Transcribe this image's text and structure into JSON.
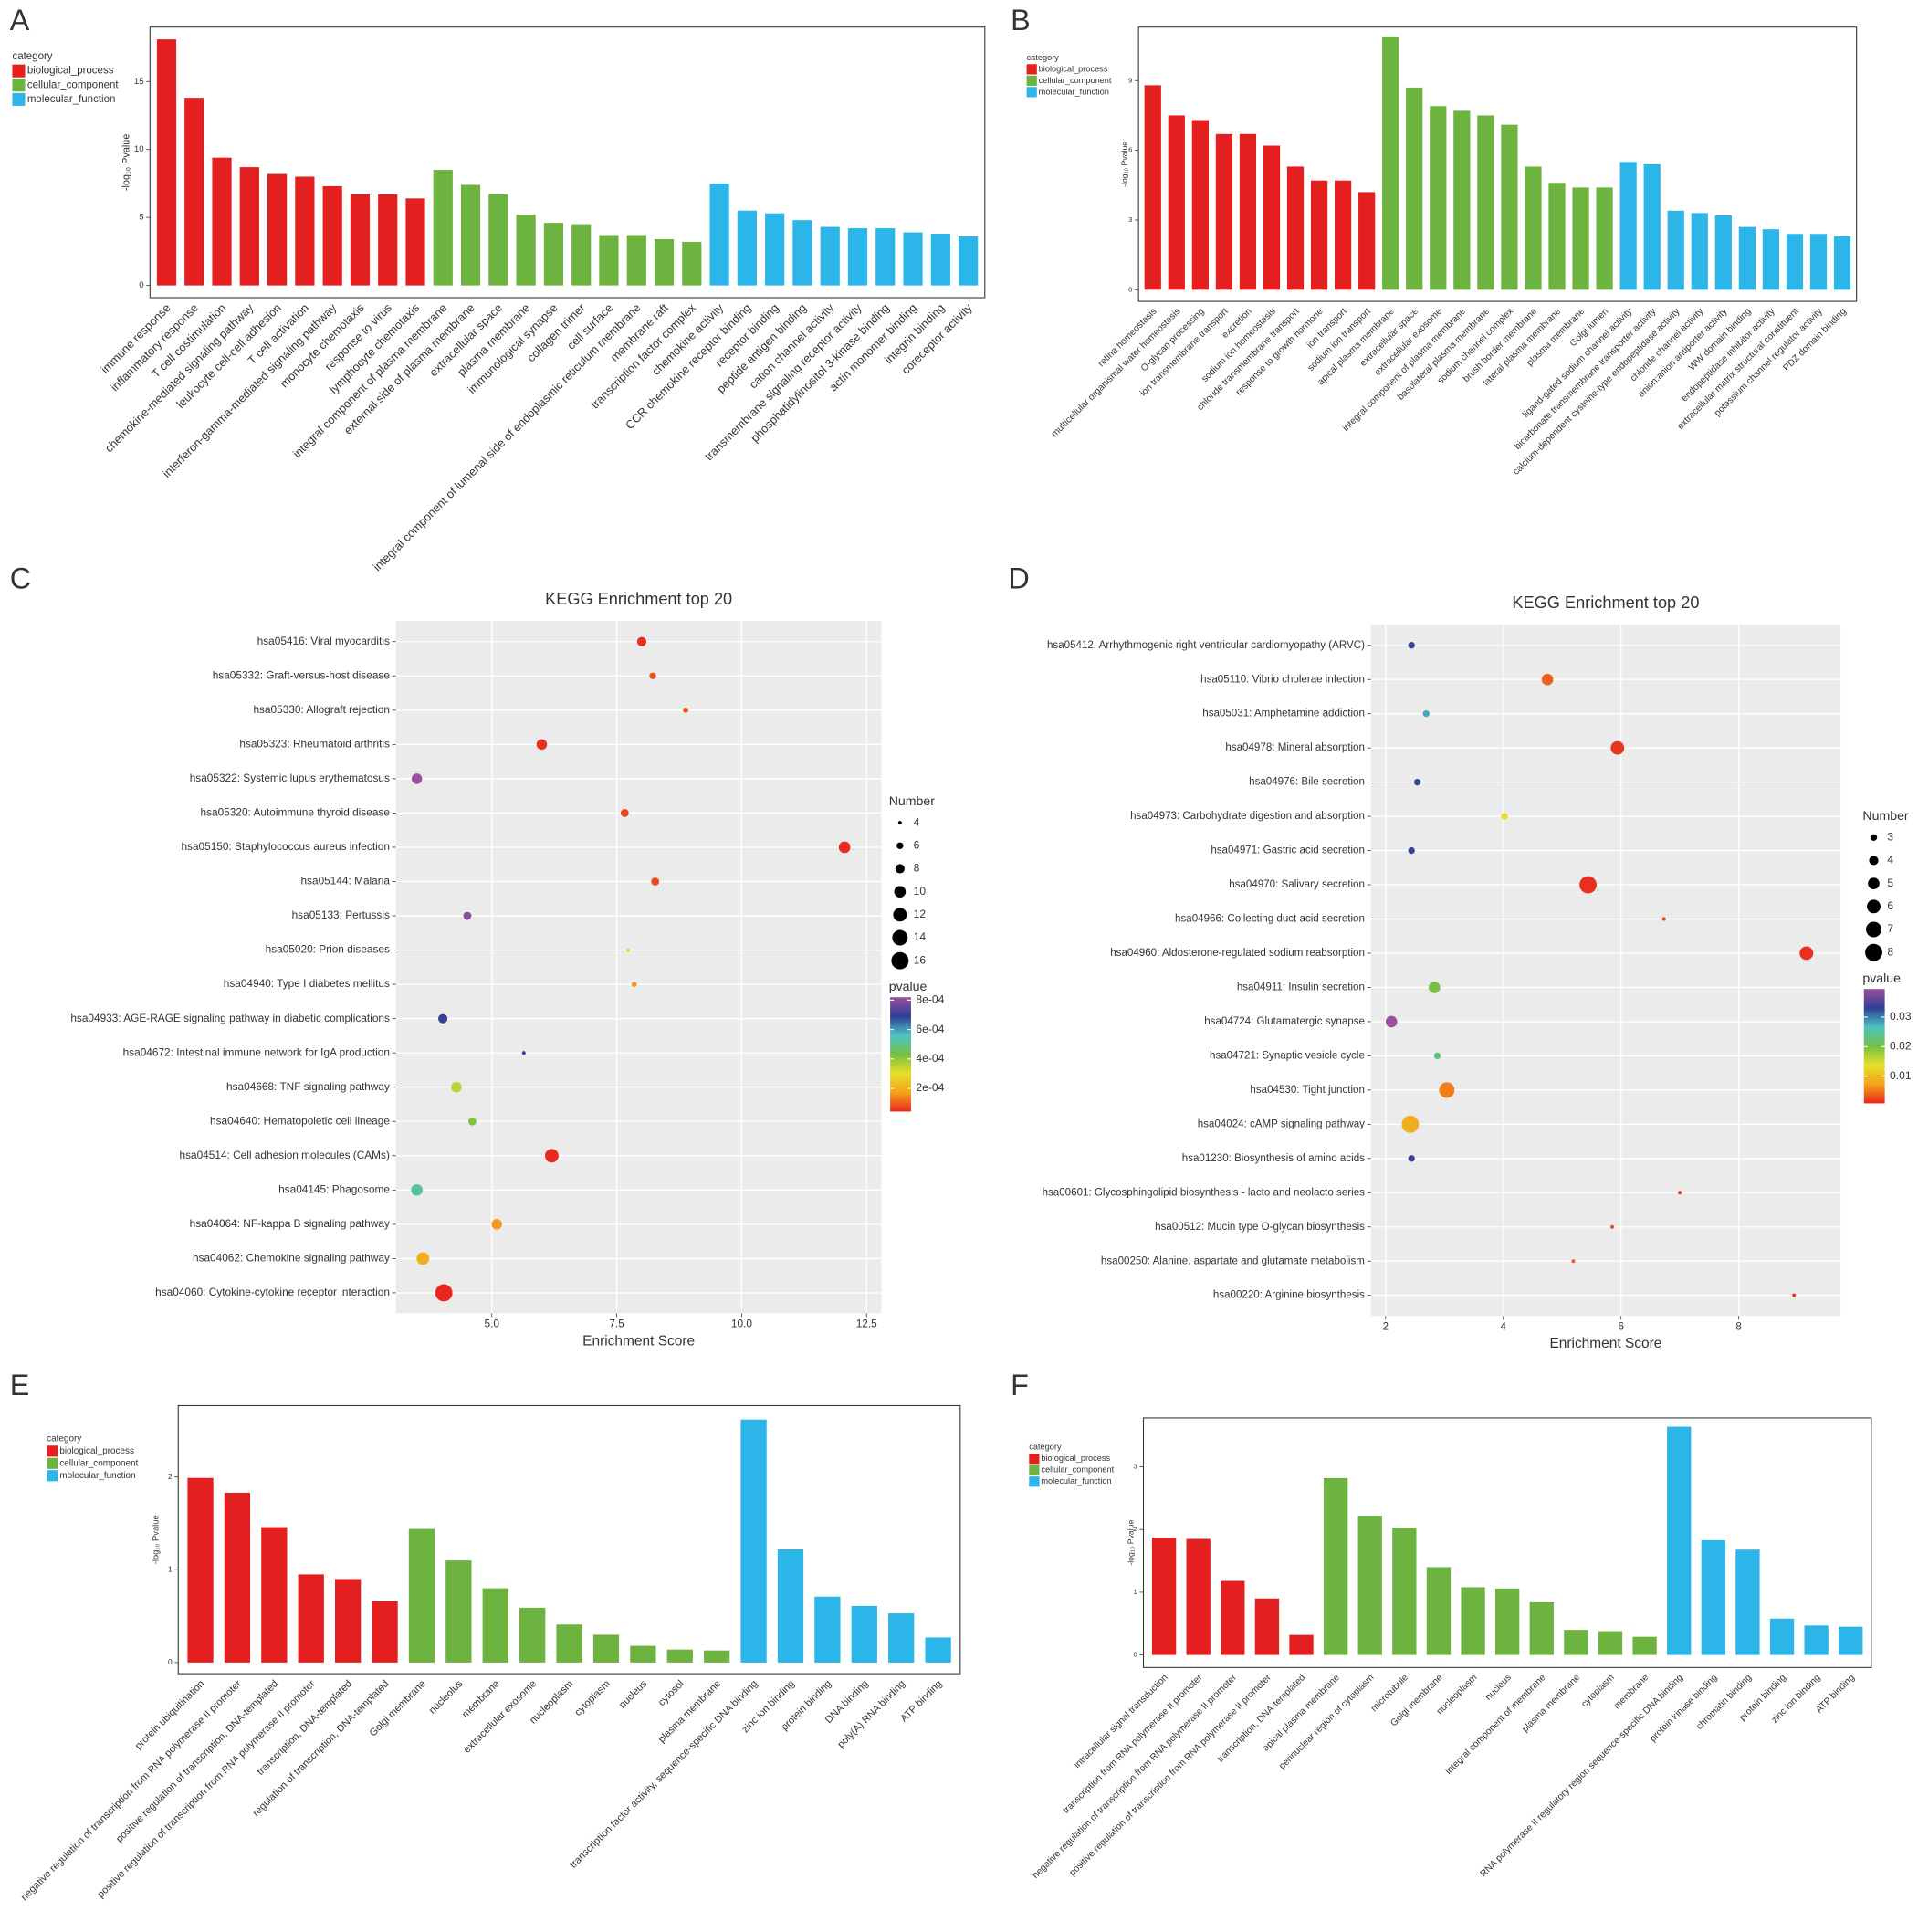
{
  "chart_data": [
    {
      "type": "bar",
      "label": "A",
      "ylabel": "-log₁₀ Pvalue",
      "legend_title": "category",
      "ylim": [
        -0.9,
        19
      ],
      "yticks": [
        0,
        5,
        10,
        15
      ],
      "series": [
        {
          "name": "biological_process",
          "color": "#e41f1f",
          "categories": [
            "immune response",
            "inflammatory response",
            "T cell costimulation",
            "chemokine-mediated signaling pathway",
            "leukocyte cell-cell adhesion",
            "T cell activation",
            "interferon-gamma-mediated signaling pathway",
            "monocyte chemotaxis",
            "response to virus",
            "lymphocyte chemotaxis"
          ],
          "values": [
            18.1,
            13.8,
            9.4,
            8.7,
            8.2,
            8.0,
            7.3,
            6.7,
            6.7,
            6.4
          ]
        },
        {
          "name": "cellular_component",
          "color": "#6db33f",
          "categories": [
            "integral component of plasma membrane",
            "external side of plasma membrane",
            "extracellular space",
            "plasma membrane",
            "immunological synapse",
            "collagen trimer",
            "cell surface",
            "integral component of lumenal side of endoplasmic reticulum membrane",
            "membrane raft",
            "transcription factor complex"
          ],
          "values": [
            8.5,
            7.4,
            6.7,
            5.2,
            4.6,
            4.5,
            3.7,
            3.7,
            3.4,
            3.2
          ]
        },
        {
          "name": "molecular_function",
          "color": "#2bb5e8",
          "categories": [
            "chemokine activity",
            "CCR chemokine receptor binding",
            "receptor binding",
            "peptide antigen binding",
            "cation channel activity",
            "transmembrane signaling receptor activity",
            "phosphatidylinositol 3-kinase binding",
            "actin monomer binding",
            "integrin binding",
            "coreceptor activity"
          ],
          "values": [
            7.5,
            5.5,
            5.3,
            4.8,
            4.3,
            4.2,
            4.2,
            3.9,
            3.8,
            3.6
          ]
        }
      ]
    },
    {
      "type": "bar",
      "label": "B",
      "ylabel": "-log₁₀ Pvalue",
      "legend_title": "category",
      "ylim": [
        -0.5,
        11.3
      ],
      "yticks": [
        0,
        3,
        6,
        9
      ],
      "series": [
        {
          "name": "biological_process",
          "color": "#e41f1f",
          "categories": [
            "retina homeostasis",
            "multicellular organismal water homeostasis",
            "O-glycan processing",
            "ion transmembrane transport",
            "excretion",
            "sodium ion homeostasis",
            "chloride transmembrane transport",
            "response to growth hormone",
            "ion transport",
            "sodium ion transport"
          ],
          "values": [
            8.8,
            7.5,
            7.3,
            6.7,
            6.7,
            6.2,
            5.3,
            4.7,
            4.7,
            4.2
          ]
        },
        {
          "name": "cellular_component",
          "color": "#6db33f",
          "categories": [
            "apical plasma membrane",
            "extracellular space",
            "extracellular exosome",
            "integral component of plasma membrane",
            "basolateral plasma membrane",
            "sodium channel complex",
            "brush border membrane",
            "lateral plasma membrane",
            "plasma membrane",
            "Golgi lumen"
          ],
          "values": [
            10.9,
            8.7,
            7.9,
            7.7,
            7.5,
            7.1,
            5.3,
            4.6,
            4.4,
            4.4
          ]
        },
        {
          "name": "molecular_function",
          "color": "#2bb5e8",
          "categories": [
            "ligand-gated sodium channel activity",
            "bicarbonate transmembrane transporter activity",
            "calcium-dependent cysteine-type endopeptidase activity",
            "chloride channel activity",
            "anion:anion antiporter activity",
            "WW domain binding",
            "endopeptidase inhibitor activity",
            "extracellular matrix structural constituent",
            "potassium channel regulator activity",
            "PDZ domain binding"
          ],
          "values": [
            5.5,
            5.4,
            3.4,
            3.3,
            3.2,
            2.7,
            2.6,
            2.4,
            2.4,
            2.3
          ]
        }
      ]
    },
    {
      "type": "dot",
      "label": "C",
      "title": "KEGG Enrichment top 20",
      "xlabel": "Enrichment Score",
      "size_title": "Number",
      "color_title": "pvalue",
      "categories": [
        "hsa05416: Viral myocarditis",
        "hsa05332: Graft-versus-host disease",
        "hsa05330: Allograft rejection",
        "hsa05323: Rheumatoid arthritis",
        "hsa05322: Systemic lupus erythematosus",
        "hsa05320: Autoimmune thyroid disease",
        "hsa05150: Staphylococcus aureus infection",
        "hsa05144: Malaria",
        "hsa05133: Pertussis",
        "hsa05020: Prion diseases",
        "hsa04940: Type I diabetes mellitus",
        "hsa04933: AGE-RAGE signaling pathway in diabetic complications",
        "hsa04672: Intestinal immune network for IgA production",
        "hsa04668: TNF signaling pathway",
        "hsa04640: Hematopoietic cell lineage",
        "hsa04514: Cell adhesion molecules (CAMs)",
        "hsa04145: Phagosome",
        "hsa04064: NF-kappa B signaling pathway",
        "hsa04062: Chemokine signaling pathway",
        "hsa04060: Cytokine-cytokine receptor interaction"
      ],
      "values": [
        8.0,
        8.22,
        8.88,
        6.0,
        3.5,
        7.66,
        12.06,
        8.27,
        4.51,
        7.73,
        7.85,
        4.02,
        5.64,
        4.29,
        4.61,
        6.2,
        3.5,
        5.1,
        3.62,
        4.04
      ],
      "sizes": [
        8,
        6,
        5,
        9,
        9,
        7,
        10,
        7,
        7,
        4,
        5,
        8,
        4,
        9,
        7,
        12,
        10,
        9,
        11,
        16
      ],
      "pvalues": [
        5e-05,
        9e-05,
        9e-05,
        5e-05,
        0.00082,
        7e-05,
        4.5e-05,
        8e-05,
        0.0008,
        0.0003,
        0.00016,
        0.0007,
        0.00068,
        0.00035,
        0.00042,
        4.5e-05,
        0.00052,
        0.00016,
        0.0002,
        4.2e-05
      ],
      "xlim": [
        3.08,
        12.8
      ],
      "xticks": [
        {
          "value": 5,
          "label": "5.0"
        },
        7.5,
        {
          "value": 10,
          "label": "10.0"
        },
        12.5
      ],
      "size_lim": [
        4,
        16
      ],
      "size_ticks": [
        4,
        6,
        8,
        10,
        12,
        14,
        16
      ],
      "pvalue_lim": [
        4.2e-05,
        0.00082
      ],
      "pvalue_ticks": [
        {
          "value": 0.0002,
          "label": "2e-04"
        },
        {
          "value": 0.0004,
          "label": "4e-04"
        },
        {
          "value": 0.0006,
          "label": "6e-04"
        },
        {
          "value": 0.0008,
          "label": "8e-04"
        }
      ],
      "colorscale": [
        "#e8281e",
        "#f4a11a",
        "#e6e02a",
        "#74c043",
        "#4cc3c3",
        "#2f3f95",
        "#9c4f9f"
      ],
      "point_color": "#e8281e",
      "grid": true
    },
    {
      "type": "dot",
      "label": "D",
      "title": "KEGG Enrichment top 20",
      "xlabel": "Enrichment Score",
      "size_title": "Number",
      "color_title": "pvalue",
      "categories": [
        "hsa05412: Arrhythmogenic right ventricular cardiomyopathy (ARVC)",
        "hsa05110: Vibrio cholerae infection",
        "hsa05031: Amphetamine addiction",
        "hsa04978: Mineral absorption",
        "hsa04976: Bile secretion",
        "hsa04973: Carbohydrate digestion and absorption",
        "hsa04971: Gastric acid secretion",
        "hsa04970: Salivary secretion",
        "hsa04966: Collecting duct acid secretion",
        "hsa04960: Aldosterone-regulated sodium reabsorption",
        "hsa04911: Insulin secretion",
        "hsa04724: Glutamatergic synapse",
        "hsa04721: Synaptic vesicle cycle",
        "hsa04530: Tight junction",
        "hsa04024: cAMP signaling pathway",
        "hsa01230: Biosynthesis of amino acids",
        "hsa00601: Glycosphingolipid biosynthesis - lacto and neolacto series",
        "hsa00512: Mucin type O-glycan biosynthesis",
        "hsa00250: Alanine, aspartate and glutamate metabolism",
        "hsa00220: Arginine biosynthesis"
      ],
      "values": [
        2.44,
        4.75,
        2.69,
        5.94,
        2.54,
        4.02,
        2.44,
        5.44,
        6.73,
        9.15,
        2.83,
        2.1,
        2.88,
        3.04,
        2.42,
        2.44,
        7.0,
        5.85,
        5.19,
        8.94
      ],
      "sizes": [
        3,
        5,
        3,
        6,
        3,
        3,
        3,
        8,
        2,
        6,
        5,
        5,
        3,
        7,
        8,
        3,
        2,
        2,
        2,
        2
      ],
      "pvalues": [
        0.0337,
        0.0039,
        0.0279,
        0.0016,
        0.0325,
        0.0136,
        0.0337,
        0.0012,
        0.0016,
        0.0012,
        0.0202,
        0.0395,
        0.0232,
        0.0054,
        0.0085,
        0.0337,
        0.002,
        0.0027,
        0.0039,
        0.0016
      ],
      "xlim": [
        1.75,
        9.73
      ],
      "xticks": [
        2,
        4,
        6,
        8
      ],
      "size_lim": [
        2,
        8
      ],
      "size_ticks": [
        3,
        4,
        5,
        6,
        7,
        8
      ],
      "pvalue_lim": [
        0.0008,
        0.0395
      ],
      "pvalue_ticks": [
        0.01,
        0.02,
        0.03
      ],
      "colorscale": [
        "#e8281e",
        "#f4a11a",
        "#e6e02a",
        "#74c043",
        "#4cc3c3",
        "#2f3f95",
        "#9c4f9f"
      ],
      "point_color": "#e8281e",
      "grid": true
    },
    {
      "type": "bar",
      "label": "E",
      "ylabel": "-log₁₀ Pvalue",
      "legend_title": "category",
      "ylim": [
        -0.12,
        2.77
      ],
      "yticks": [
        0,
        1,
        2
      ],
      "series": [
        {
          "name": "biological_process",
          "color": "#e41f1f",
          "categories": [
            "protein ubiquitination",
            "negative regulation of transcription from RNA polymerase II promoter",
            "positive regulation of transcription, DNA-templated",
            "positive regulation of transcription from RNA polymerase II promoter",
            "transcription, DNA-templated",
            "regulation of transcription, DNA-templated"
          ],
          "values": [
            1.99,
            1.83,
            1.46,
            0.95,
            0.9,
            0.66
          ]
        },
        {
          "name": "cellular_component",
          "color": "#6db33f",
          "categories": [
            "Golgi membrane",
            "nucleolus",
            "membrane",
            "extracellular exosome",
            "nucleoplasm",
            "cytoplasm",
            "nucleus",
            "cytosol",
            "plasma membrane"
          ],
          "values": [
            1.44,
            1.1,
            0.8,
            0.59,
            0.41,
            0.3,
            0.18,
            0.14,
            0.13
          ]
        },
        {
          "name": "molecular_function",
          "color": "#2bb5e8",
          "categories": [
            "transcription factor activity, sequence-specific DNA binding",
            "zinc ion binding",
            "protein binding",
            "DNA binding",
            "poly(A) RNA binding",
            "ATP binding"
          ],
          "values": [
            2.62,
            1.22,
            0.71,
            0.61,
            0.53,
            0.27
          ]
        }
      ]
    },
    {
      "type": "bar",
      "label": "F",
      "ylabel": "-log₁₀ Pvalue",
      "legend_title": "category",
      "ylim": [
        -0.2,
        3.78
      ],
      "yticks": [
        0,
        1,
        2,
        3
      ],
      "series": [
        {
          "name": "biological_process",
          "color": "#e41f1f",
          "categories": [
            "intracellular signal transduction",
            "transcription from RNA polymerase II promoter",
            "negative regulation of transcription from RNA polymerase II promoter",
            "positive regulation of transcription from RNA polymerase II promoter",
            "transcription, DNA-templated"
          ],
          "values": [
            1.87,
            1.85,
            1.18,
            0.9,
            0.32
          ]
        },
        {
          "name": "cellular_component",
          "color": "#6db33f",
          "categories": [
            "apical plasma membrane",
            "perinuclear region of cytoplasm",
            "microtubule",
            "Golgi membrane",
            "nucleoplasm",
            "nucleus",
            "integral component of membrane",
            "plasma membrane",
            "cytoplasm",
            "membrane"
          ],
          "values": [
            2.82,
            2.22,
            2.03,
            1.4,
            1.08,
            1.06,
            0.84,
            0.4,
            0.38,
            0.29
          ]
        },
        {
          "name": "molecular_function",
          "color": "#2bb5e8",
          "categories": [
            "RNA polymerase II regulatory region sequence-specific DNA binding",
            "protein kinase binding",
            "chromatin binding",
            "protein binding",
            "zinc ion binding",
            "ATP binding"
          ],
          "values": [
            3.64,
            1.83,
            1.68,
            0.58,
            0.47,
            0.45
          ]
        }
      ]
    }
  ]
}
